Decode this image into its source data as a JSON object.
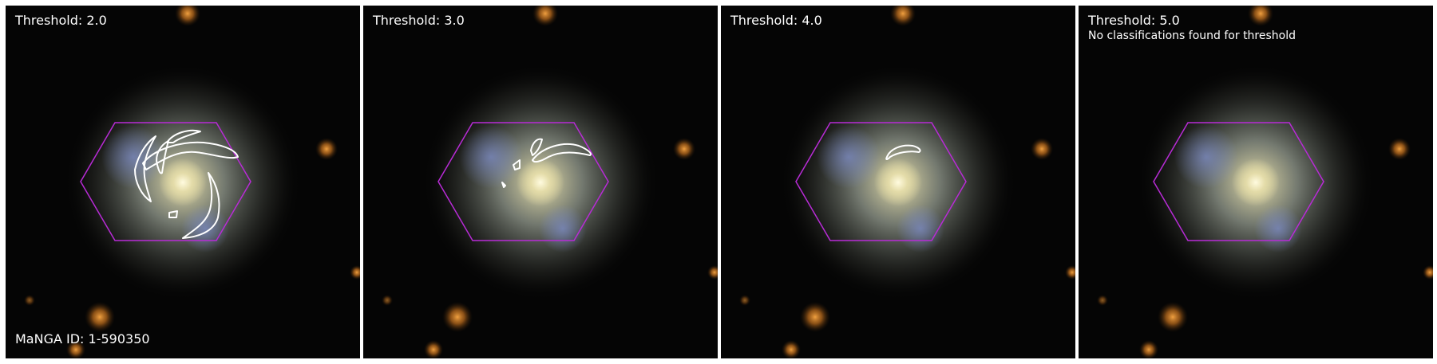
{
  "panels": [
    {
      "title": "Threshold: 2.0",
      "note": "",
      "footer": "MaNGA ID: 1-590350"
    },
    {
      "title": "Threshold: 3.0",
      "note": "",
      "footer": ""
    },
    {
      "title": "Threshold: 4.0",
      "note": "",
      "footer": ""
    },
    {
      "title": "Threshold: 5.0",
      "note": "No classifications found for threshold",
      "footer": ""
    }
  ],
  "colors": {
    "background": "#000000",
    "hexagon": "#b82bd6",
    "contour": "#ffffff",
    "divider": "#ffffff"
  },
  "icons": [
    "galaxy-image",
    "ifu-hexagon",
    "arm-contour"
  ]
}
